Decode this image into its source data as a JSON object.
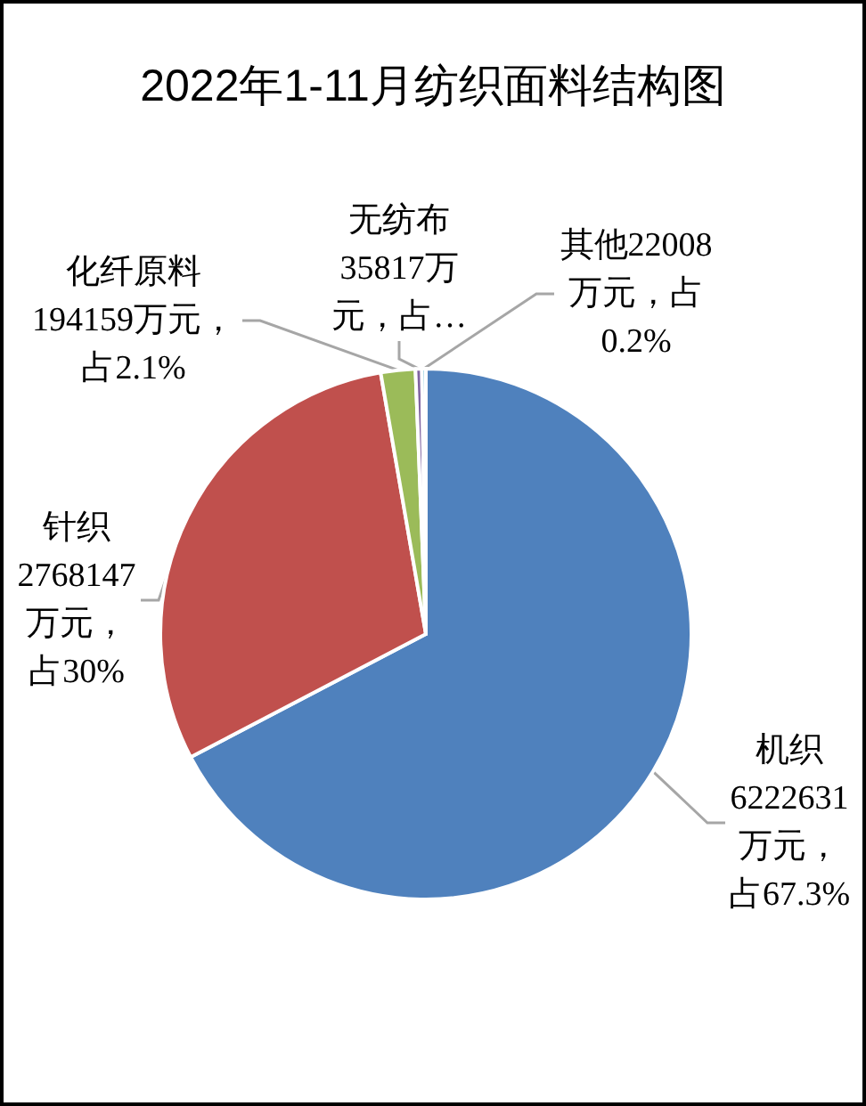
{
  "chart_data": {
    "type": "pie",
    "title": "2022年1-11月纺织面料结构图",
    "categories": [
      "机织",
      "针织",
      "化纤原料",
      "无纺布",
      "其他"
    ],
    "values": [
      6222631,
      2768147,
      194159,
      35817,
      22008
    ],
    "colors": [
      "#4f81bd",
      "#c0504d",
      "#9bbb59",
      "#8064a2",
      "#4bacc6"
    ],
    "value_labels": [
      "6222631万元，占67.3%",
      "2768147万元，占30%",
      "194159万元，占2.1%",
      "35817万元，占…",
      "22008万元，占0.2%"
    ]
  }
}
